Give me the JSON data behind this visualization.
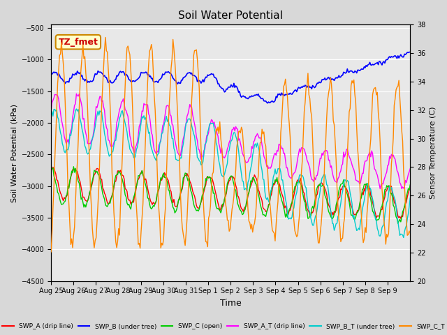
{
  "title": "Soil Water Potential",
  "xlabel": "Time",
  "ylabel_left": "Soil Water Potential (kPa)",
  "ylabel_right": "Sensor Temperature (C)",
  "ylim_left": [
    -4500,
    -500
  ],
  "ylim_right": [
    20,
    38
  ],
  "yticks_left": [
    -4500,
    -4000,
    -3500,
    -3000,
    -2500,
    -2000,
    -1500,
    -1000,
    -500
  ],
  "yticks_right": [
    20,
    22,
    24,
    26,
    28,
    30,
    32,
    34,
    36,
    38
  ],
  "fig_bg_color": "#d8d8d8",
  "plot_bg_color": "#e8e8e8",
  "annotation_text": "TZ_fmet",
  "annotation_facecolor": "#ffffcc",
  "annotation_edgecolor": "#cc8800",
  "annotation_textcolor": "#cc0000",
  "xtick_labels": [
    "Aug 25",
    "Aug 26",
    "Aug 27",
    "Aug 28",
    "Aug 29",
    "Aug 30",
    "Aug 31",
    "Sep 1",
    "Sep 2",
    "Sep 3",
    "Sep 4",
    "Sep 5",
    "Sep 6",
    "Sep 7",
    "Sep 8",
    "Sep 9"
  ],
  "colors": {
    "swp_a": "#ff0000",
    "swp_b": "#0000ff",
    "swp_c": "#00cc00",
    "swp_at": "#ff00ff",
    "swp_bt": "#00cccc",
    "temp": "#ff8800"
  },
  "legend_labels": [
    "SWP_A (drip line)",
    "SWP_B (under tree)",
    "SWP_C (open)",
    "SWP_A_T (drip line)",
    "SWP_B_T (under tree)",
    "SWP_C_T"
  ],
  "n_days": 16,
  "pts_per_day": 24
}
